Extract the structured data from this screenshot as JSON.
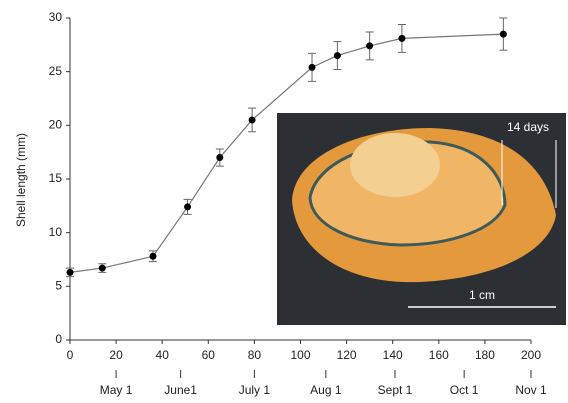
{
  "chart_data": {
    "type": "line",
    "y_label": "Shell length (mm)",
    "x": [
      0,
      14,
      36,
      51,
      65,
      79,
      105,
      116,
      130,
      144,
      188
    ],
    "series": [
      {
        "color": "#000000",
        "values": [
          6.3,
          6.7,
          7.8,
          12.4,
          17.0,
          20.5,
          25.4,
          26.5,
          27.4,
          28.1,
          28.5
        ],
        "errors": [
          0.4,
          0.4,
          0.5,
          0.7,
          0.8,
          1.1,
          1.3,
          1.3,
          1.3,
          1.3,
          1.5
        ]
      }
    ],
    "xlim": [
      0,
      200
    ],
    "xticks": [
      0,
      20,
      40,
      60,
      80,
      100,
      120,
      140,
      160,
      180,
      200
    ],
    "ylim": [
      0,
      30
    ],
    "yticks": [
      0,
      5,
      10,
      15,
      20,
      25,
      30
    ],
    "x2ticks": [
      {
        "value": 20,
        "label": "May 1"
      },
      {
        "value": 48,
        "label": "June1"
      },
      {
        "value": 80,
        "label": "July 1"
      },
      {
        "value": 111,
        "label": "Aug 1"
      },
      {
        "value": 141,
        "label": "Sept 1"
      },
      {
        "value": 171,
        "label": "Oct 1"
      },
      {
        "value": 200,
        "label": "Nov 1"
      }
    ],
    "inset": {
      "growth_label": "14 days",
      "scale_label": "1 cm"
    }
  }
}
